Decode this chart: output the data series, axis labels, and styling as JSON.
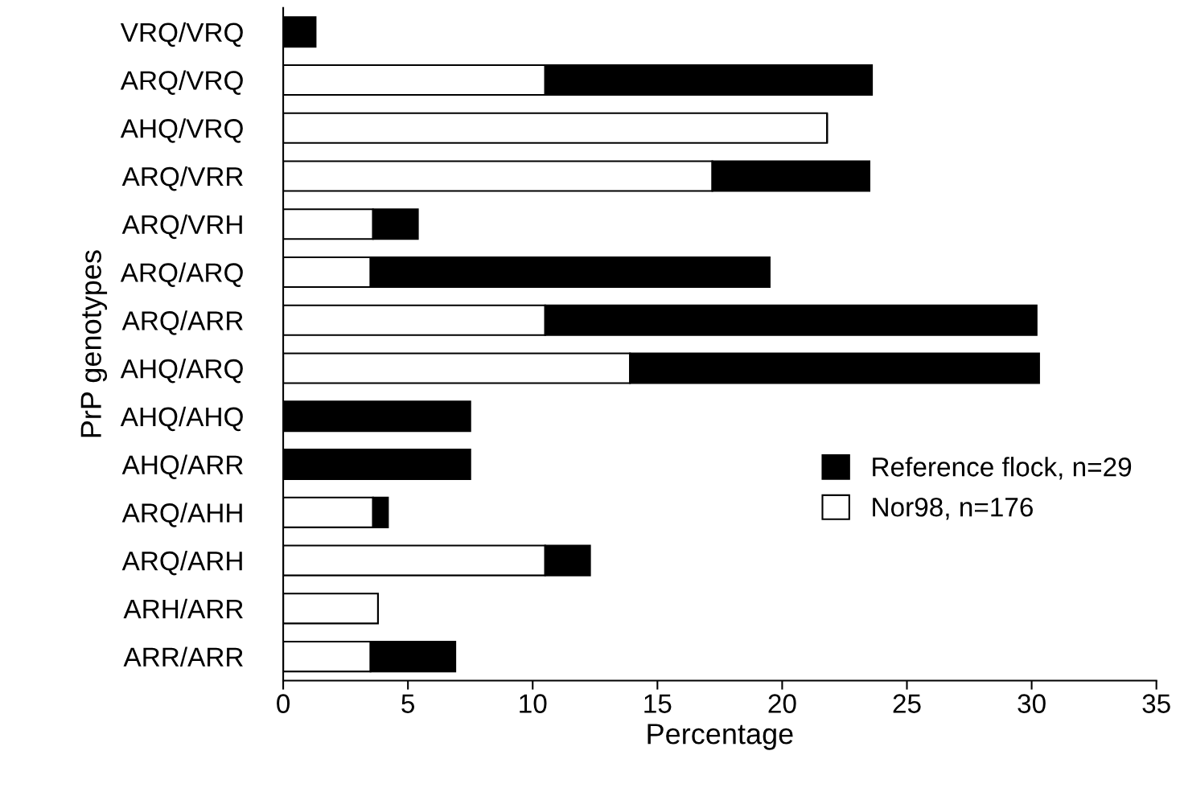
{
  "chart_data": {
    "type": "bar",
    "orientation": "horizontal",
    "stacked": true,
    "xlabel": "Percentage",
    "ylabel": "PrP genotypes",
    "categories": [
      "VRQ/VRQ",
      "ARQ/VRQ",
      "AHQ/VRQ",
      "ARQ/VRR",
      "ARQ/VRH",
      "ARQ/ARQ",
      "ARQ/ARR",
      "AHQ/ARQ",
      "AHQ/AHQ",
      "AHQ/ARR",
      "ARQ/AHH",
      "ARQ/ARH",
      "ARH/ARR",
      "ARR/ARR"
    ],
    "series": [
      {
        "name": "Nor98, n=176",
        "color": "#ffffff",
        "values": [
          0,
          10.5,
          21.8,
          17.2,
          3.6,
          3.5,
          10.5,
          13.9,
          0,
          0,
          3.6,
          10.5,
          3.8,
          3.5
        ]
      },
      {
        "name": "Reference flock, n=29",
        "color": "#000000",
        "values": [
          1.3,
          13.1,
          0,
          6.3,
          1.8,
          16.0,
          19.7,
          16.4,
          7.5,
          7.5,
          0.6,
          1.8,
          0,
          3.4
        ]
      }
    ],
    "xlim": [
      0,
      35
    ],
    "xticks": [
      0,
      5,
      10,
      15,
      20,
      25,
      30,
      35
    ],
    "grid": false,
    "legend": "bottom right"
  }
}
